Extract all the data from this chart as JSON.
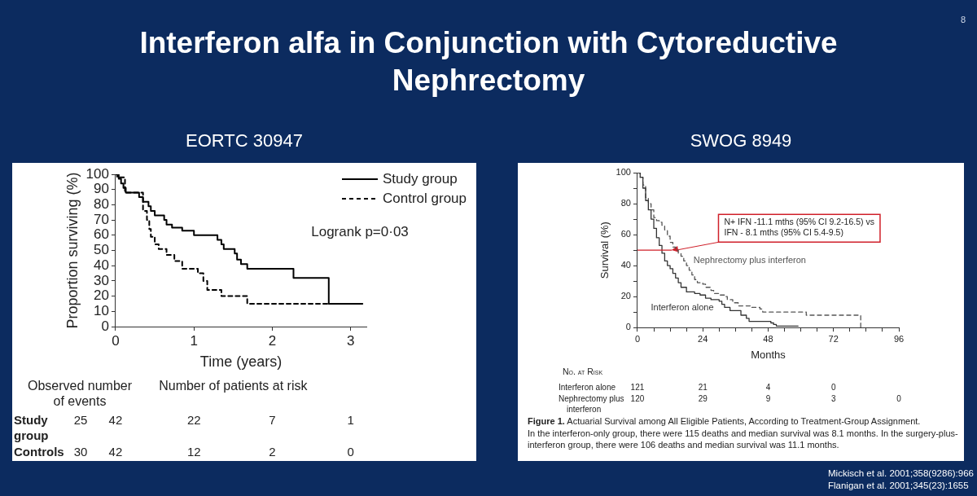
{
  "chart_data": [
    {
      "type": "step",
      "title": "EORTC 30947",
      "xlabel": "Time (years)",
      "ylabel": "Proportion surviving (%)",
      "xlim": [
        0,
        3.2
      ],
      "xticks": [
        0,
        1,
        2,
        3
      ],
      "ylim": [
        0,
        100
      ],
      "yticks": [
        0,
        10,
        20,
        30,
        40,
        50,
        60,
        70,
        80,
        90,
        100
      ],
      "legend": "top right",
      "series": [
        {
          "name": "Study group",
          "color": "#000000",
          "line_style": "solid",
          "x": [
            0,
            0.04,
            0.07,
            0.1,
            0.13,
            0.3,
            0.35,
            0.42,
            0.45,
            0.5,
            0.62,
            0.65,
            0.72,
            0.85,
            1.0,
            1.3,
            1.35,
            1.38,
            1.52,
            1.55,
            1.6,
            1.68,
            2.27,
            2.72,
            3.15
          ],
          "values": [
            100,
            97,
            94,
            91,
            88,
            85,
            82,
            79,
            76,
            73,
            70,
            67,
            65,
            63,
            60,
            57,
            54,
            51,
            48,
            44,
            41,
            38,
            32,
            15,
            15
          ]
        },
        {
          "name": "Control group",
          "color": "#000000",
          "line_style": "dashed",
          "x": [
            0,
            0.02,
            0.12,
            0.35,
            0.4,
            0.43,
            0.45,
            0.5,
            0.55,
            0.65,
            0.75,
            0.85,
            1.05,
            1.12,
            1.17,
            1.35,
            1.68,
            2.72
          ],
          "values": [
            100,
            98,
            88,
            76,
            70,
            64,
            59,
            54,
            51,
            47,
            43,
            38,
            35,
            30,
            24,
            20,
            15,
            15
          ]
        }
      ],
      "annotations": [
        "Interferon alfa in Conjunction with Cytoreductive Nephrectomy",
        "8",
        "Logrank p=0·03",
        "Observed number\nof events\tNumber of patients at risk",
        "Study group\t25\t42\t22\t7\t1",
        "Controls\t30\t42\t12\t2\t0"
      ]
    },
    {
      "type": "step",
      "title": "SWOG 8949",
      "xlabel": "Months",
      "ylabel": "Survival (%)",
      "xlim": [
        0,
        96
      ],
      "xticks": [
        0,
        {
          "value": 6,
          "label": null
        },
        {
          "value": 12,
          "label": null
        },
        {
          "value": 18,
          "label": null
        },
        24,
        {
          "value": 30,
          "label": null
        },
        {
          "value": 36,
          "label": null
        },
        {
          "value": 42,
          "label": null
        },
        48,
        {
          "value": 54,
          "label": null
        },
        {
          "value": 60,
          "label": null
        },
        {
          "value": 66,
          "label": null
        },
        72,
        {
          "value": 78,
          "label": null
        },
        {
          "value": 84,
          "label": null
        },
        {
          "value": 90,
          "label": null
        },
        96
      ],
      "ylim": [
        0,
        100
      ],
      "yticks": [
        0,
        {
          "value": 10,
          "label": null
        },
        20,
        {
          "value": 30,
          "label": null
        },
        40,
        {
          "value": 50,
          "label": null
        },
        60,
        {
          "value": 70,
          "label": null
        },
        80,
        {
          "value": 90,
          "label": null
        },
        100
      ],
      "series": [
        {
          "type": "line",
          "color": "#d0202a",
          "line_style": "solid",
          "x": [
            0,
            12.5
          ],
          "values": [
            50,
            50
          ]
        },
        {
          "name": "Interferon alone",
          "color": "#333333",
          "line_style": "solid",
          "x": [
            0,
            1,
            2,
            3,
            4,
            5,
            6,
            7,
            8,
            9,
            10,
            11,
            12,
            13,
            14,
            15,
            16,
            18,
            21,
            23,
            25,
            27,
            30,
            31,
            32,
            34,
            38,
            40,
            41,
            48,
            49,
            50,
            51,
            59
          ],
          "values": [
            100,
            97,
            90,
            82,
            76,
            70,
            64,
            58,
            53,
            48,
            43,
            40,
            38,
            35,
            32,
            29,
            26,
            23,
            22,
            21,
            19,
            18,
            17,
            15,
            13,
            11,
            8,
            6,
            4,
            4,
            3,
            2,
            1,
            1
          ]
        },
        {
          "name": "Nephrectomy plus interferon",
          "color": "#555555",
          "line_style": "dashed",
          "x": [
            0,
            1,
            2,
            3,
            4,
            5,
            6,
            7,
            8,
            9,
            10,
            11,
            12,
            13,
            14,
            15,
            16,
            17,
            18,
            19,
            20,
            21,
            22,
            24,
            25,
            27,
            28,
            30,
            32,
            33,
            35,
            37,
            42,
            45,
            46,
            55,
            62,
            82
          ],
          "values": [
            100,
            97,
            92,
            84,
            80,
            76,
            71,
            69,
            68,
            66,
            63,
            59,
            55,
            52,
            50,
            48,
            46,
            43,
            40,
            37,
            34,
            31,
            29,
            28,
            26,
            24,
            22,
            21,
            20,
            18,
            16,
            14,
            13,
            12,
            10,
            10,
            8,
            0
          ]
        }
      ],
      "annotations": [
        {
          "text": "N+ IFN -11.1 mths (95% CI 9.2-16.5) vs\nIFN - 8.1 mths (95% CI 5.4-9.5)",
          "x": 12.5,
          "y": 50
        },
        "No. at Risk",
        "Interferon alone\t121\t21\t4\t0",
        "Nephrectomy plus interferon\t120\t29\t9\t3\t0",
        "Figure 1. Actuarial Survival among All Eligible Patients, According to Treatment-Group Assignment.\nIn the interferon-only group, there were 115 deaths and median survival was 8.1 months. In the surgery-plus-interferon group, there were 106 deaths and median survival was 11.1 months.",
        "Mickisch et al. 2001;358(9286):966",
        "Flanigan et al. 2001;345(23):1655"
      ]
    }
  ]
}
